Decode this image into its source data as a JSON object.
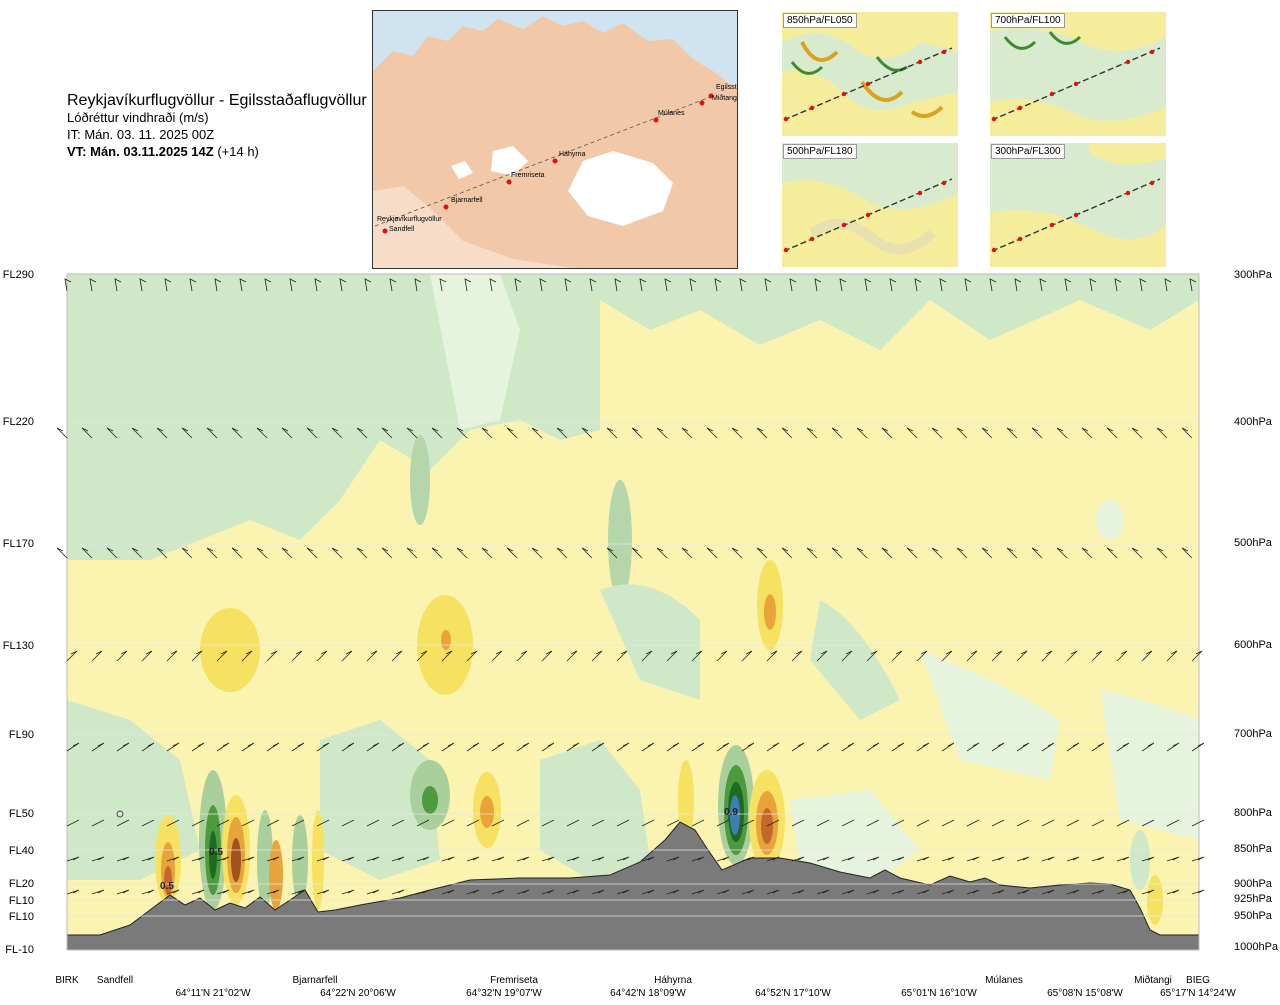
{
  "header": {
    "route": "Reykjavíkurflugvöllur - Egilsstaðaflugvöllur",
    "parameter": "Lóðréttur vindhraði (m/s)",
    "issue_time": "IT: Mán. 03. 11. 2025 00Z",
    "valid_time": "VT: Mán. 03.11.2025 14Z",
    "valid_offset": "(+14 h)"
  },
  "route_map": {
    "waypoints": [
      {
        "name": "Reykjavíkurflugvöllur"
      },
      {
        "name": "Sandfell"
      },
      {
        "name": "Bjarnarfell"
      },
      {
        "name": "Fremriseta"
      },
      {
        "name": "Háhyrna"
      },
      {
        "name": "Múlanes"
      },
      {
        "name": "Miðtangi"
      },
      {
        "name": "Egilsst"
      }
    ]
  },
  "insets": [
    {
      "label": "850hPa/FL050"
    },
    {
      "label": "700hPa/FL100"
    },
    {
      "label": "500hPa/FL180"
    },
    {
      "label": "300hPa/FL300"
    }
  ],
  "cross_section": {
    "flight_levels": [
      "FL290",
      "FL220",
      "FL170",
      "FL130",
      "FL90",
      "FL50",
      "FL40",
      "FL20",
      "FL10",
      "FL10",
      "FL-10"
    ],
    "pressure_levels": [
      "300hPa",
      "400hPa",
      "500hPa",
      "600hPa",
      "700hPa",
      "800hPa",
      "850hPa",
      "900hPa",
      "925hPa",
      "950hPa",
      "1000hPa"
    ],
    "value_labels": [
      "0.5",
      "0.5",
      "0.9"
    ],
    "stations": [
      "BIRK",
      "Sandfell",
      "Bjarnarfell",
      "Fremriseta",
      "Háhyrna",
      "Múlanes",
      "Miðtangi",
      "BIEG"
    ],
    "coordinates": [
      "64°11'N 21°02'W",
      "64°22'N 20°06'W",
      "64°32'N 19°07'W",
      "64°42'N 18°09'W",
      "64°52'N 17°10'W",
      "65°01'N 16°10'W",
      "65°08'N 15°08'W",
      "65°17'N 14°24'W"
    ]
  }
}
